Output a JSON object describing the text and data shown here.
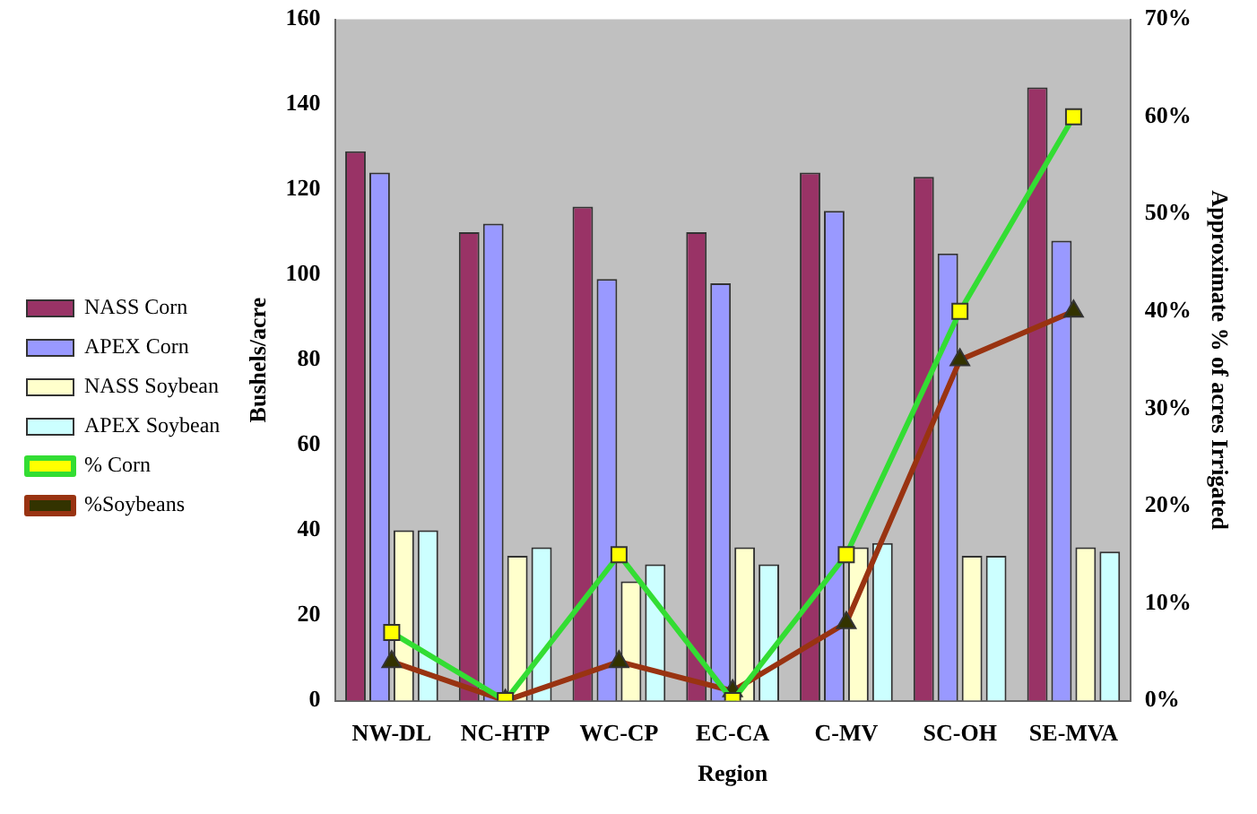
{
  "chart_data": {
    "type": "bar",
    "xlabel": "Region",
    "ylabel": "Bushels/acre",
    "y2label": "Approximate % of acres Irrigated",
    "categories": [
      "NW-DL",
      "NC-HTP",
      "WC-CP",
      "EC-CA",
      "C-MV",
      "SC-OH",
      "SE-MVA"
    ],
    "series": [
      {
        "name": "NASS Corn",
        "color": "#993366",
        "values": [
          129,
          110,
          116,
          110,
          124,
          123,
          144
        ]
      },
      {
        "name": "APEX Corn",
        "color": "#9999ff",
        "values": [
          124,
          112,
          99,
          98,
          115,
          105,
          108
        ]
      },
      {
        "name": "NASS Soybean",
        "color": "#ffffcc",
        "values": [
          40,
          34,
          28,
          36,
          36,
          34,
          36
        ]
      },
      {
        "name": "APEX Soybean",
        "color": "#ccffff",
        "values": [
          40,
          36,
          32,
          32,
          37,
          34,
          35
        ]
      },
      {
        "name": "% Corn",
        "type": "line",
        "axis": "y2",
        "color": "#33dd33",
        "marker": "square",
        "values": [
          7,
          0,
          15,
          0,
          15,
          40,
          60
        ]
      },
      {
        "name": "%Soybeans",
        "type": "line",
        "axis": "y2",
        "color": "#993311",
        "marker": "triangle",
        "values": [
          4,
          0,
          4,
          1,
          8,
          35,
          40
        ]
      }
    ],
    "ylim": [
      0,
      160
    ],
    "yticks": [
      0,
      20,
      40,
      60,
      80,
      100,
      120,
      140,
      160
    ],
    "y2lim": [
      0,
      70
    ],
    "y2ticks": [
      {
        "value": 0,
        "label": "0%"
      },
      {
        "value": 10,
        "label": "10%"
      },
      {
        "value": 20,
        "label": "20%"
      },
      {
        "value": 30,
        "label": "30%"
      },
      {
        "value": 40,
        "label": "40%"
      },
      {
        "value": 50,
        "label": "50%"
      },
      {
        "value": 60,
        "label": "60%"
      },
      {
        "value": 70,
        "label": "70%"
      }
    ],
    "grid": false,
    "legend": "left"
  }
}
